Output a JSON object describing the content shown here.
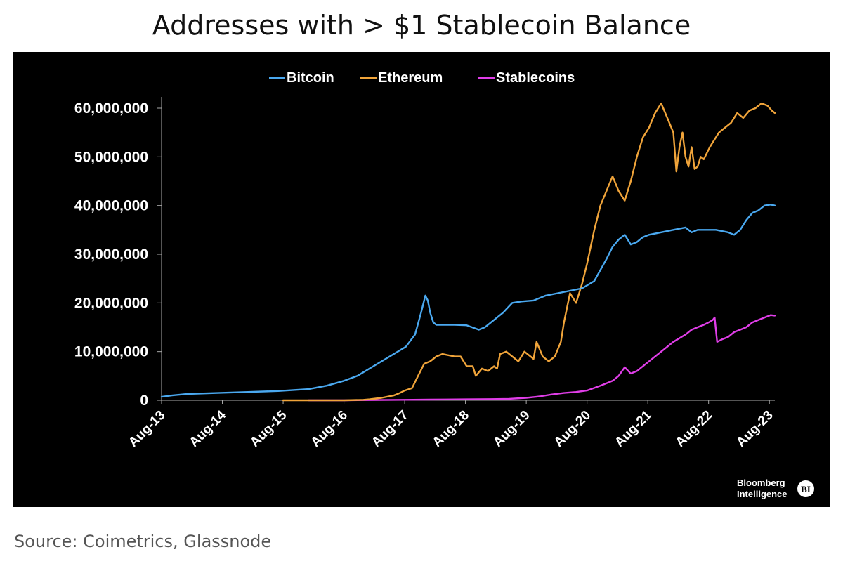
{
  "page": {
    "title": "Addresses with > $1 Stablecoin Balance",
    "source": "Source: Coimetrics, Glassnode"
  },
  "branding": {
    "line1": "Bloomberg",
    "line2": "Intelligence",
    "badge": "BI"
  },
  "colors": {
    "background": "#000000",
    "bitcoin": "#4aa8ef",
    "ethereum": "#f0a43a",
    "stablecoins": "#e03ee8",
    "axis": "#aaaaaa"
  },
  "chart_data": {
    "type": "line",
    "title": "Addresses with > $1 Stablecoin Balance",
    "xlabel": "",
    "ylabel": "",
    "xlim": [
      2013.58,
      2023.67
    ],
    "ylim": [
      0,
      60000000
    ],
    "yticks": [
      0,
      10000000,
      20000000,
      30000000,
      40000000,
      50000000,
      60000000
    ],
    "ytick_labels": [
      "0",
      "10,000,000",
      "20,000,000",
      "30,000,000",
      "40,000,000",
      "50,000,000",
      "60,000,000"
    ],
    "xticks": [
      2013.58,
      2014.58,
      2015.58,
      2016.58,
      2017.58,
      2018.58,
      2019.58,
      2020.58,
      2021.58,
      2022.58,
      2023.58
    ],
    "xtick_labels": [
      "Aug-13",
      "Aug-14",
      "Aug-15",
      "Aug-16",
      "Aug-17",
      "Aug-18",
      "Aug-19",
      "Aug-20",
      "Aug-21",
      "Aug-22",
      "Aug-23"
    ],
    "legend_position": "top-center",
    "grid": false,
    "series": [
      {
        "name": "Bitcoin",
        "color": "#4aa8ef",
        "x": [
          2013.58,
          2013.75,
          2014.0,
          2014.5,
          2015.0,
          2015.5,
          2016.0,
          2016.3,
          2016.58,
          2016.8,
          2017.0,
          2017.2,
          2017.4,
          2017.6,
          2017.75,
          2017.85,
          2017.92,
          2017.96,
          2018.0,
          2018.05,
          2018.1,
          2018.2,
          2018.4,
          2018.6,
          2018.8,
          2018.9,
          2019.0,
          2019.2,
          2019.35,
          2019.5,
          2019.7,
          2019.9,
          2020.1,
          2020.3,
          2020.5,
          2020.7,
          2020.9,
          2021.0,
          2021.1,
          2021.2,
          2021.3,
          2021.4,
          2021.5,
          2021.6,
          2021.8,
          2022.0,
          2022.2,
          2022.3,
          2022.4,
          2022.5,
          2022.7,
          2022.9,
          2023.0,
          2023.1,
          2023.2,
          2023.3,
          2023.4,
          2023.5,
          2023.6,
          2023.67
        ],
        "values": [
          700000,
          1000000,
          1300000,
          1500000,
          1700000,
          1900000,
          2300000,
          3000000,
          4000000,
          5000000,
          6500000,
          8000000,
          9500000,
          11000000,
          13500000,
          18000000,
          21500000,
          20500000,
          18000000,
          16000000,
          15500000,
          15500000,
          15500000,
          15400000,
          14500000,
          15000000,
          16000000,
          18000000,
          20000000,
          20300000,
          20500000,
          21500000,
          22000000,
          22500000,
          23000000,
          24500000,
          29000000,
          31500000,
          33000000,
          34000000,
          32000000,
          32500000,
          33500000,
          34000000,
          34500000,
          35000000,
          35500000,
          34500000,
          35000000,
          35000000,
          35000000,
          34500000,
          34000000,
          35000000,
          37000000,
          38500000,
          39000000,
          40000000,
          40200000,
          40000000
        ]
      },
      {
        "name": "Ethereum",
        "color": "#f0a43a",
        "x": [
          2015.58,
          2016.0,
          2016.58,
          2016.9,
          2017.0,
          2017.2,
          2017.4,
          2017.5,
          2017.58,
          2017.7,
          2017.8,
          2017.9,
          2018.0,
          2018.1,
          2018.2,
          2018.4,
          2018.5,
          2018.6,
          2018.7,
          2018.75,
          2018.85,
          2018.95,
          2019.05,
          2019.1,
          2019.15,
          2019.25,
          2019.35,
          2019.45,
          2019.55,
          2019.65,
          2019.7,
          2019.75,
          2019.85,
          2019.95,
          2020.05,
          2020.15,
          2020.2,
          2020.3,
          2020.4,
          2020.5,
          2020.58,
          2020.7,
          2020.8,
          2020.9,
          2021.0,
          2021.1,
          2021.2,
          2021.3,
          2021.4,
          2021.5,
          2021.6,
          2021.7,
          2021.8,
          2021.9,
          2022.0,
          2022.05,
          2022.1,
          2022.15,
          2022.2,
          2022.25,
          2022.3,
          2022.35,
          2022.4,
          2022.45,
          2022.5,
          2022.6,
          2022.65,
          2022.75,
          2022.85,
          2022.95,
          2023.05,
          2023.15,
          2023.25,
          2023.35,
          2023.45,
          2023.55,
          2023.62,
          2023.67
        ],
        "values": [
          0,
          0,
          0,
          100000,
          200000,
          500000,
          1000000,
          1500000,
          2000000,
          2500000,
          5000000,
          7500000,
          8000000,
          9000000,
          9500000,
          9000000,
          9000000,
          7000000,
          7000000,
          5000000,
          6500000,
          6000000,
          7000000,
          6500000,
          9500000,
          10000000,
          9000000,
          8000000,
          10000000,
          9000000,
          8500000,
          12000000,
          9000000,
          8000000,
          9000000,
          12000000,
          16000000,
          22000000,
          20000000,
          24000000,
          28000000,
          35000000,
          40000000,
          43000000,
          46000000,
          43000000,
          41000000,
          45000000,
          50000000,
          54000000,
          56000000,
          59000000,
          61000000,
          58000000,
          55000000,
          47000000,
          52000000,
          55000000,
          50000000,
          48000000,
          52000000,
          47500000,
          48000000,
          50000000,
          49500000,
          52000000,
          53000000,
          55000000,
          56000000,
          57000000,
          59000000,
          58000000,
          59500000,
          60000000,
          61000000,
          60500000,
          59500000,
          59000000
        ]
      },
      {
        "name": "Stablecoins",
        "color": "#e03ee8",
        "x": [
          2016.0,
          2016.58,
          2017.0,
          2017.58,
          2018.0,
          2018.58,
          2019.0,
          2019.3,
          2019.58,
          2019.8,
          2020.0,
          2020.2,
          2020.4,
          2020.58,
          2020.8,
          2021.0,
          2021.1,
          2021.2,
          2021.3,
          2021.4,
          2021.5,
          2021.6,
          2021.8,
          2022.0,
          2022.2,
          2022.3,
          2022.4,
          2022.5,
          2022.58,
          2022.65,
          2022.68,
          2022.72,
          2022.8,
          2022.9,
          2023.0,
          2023.1,
          2023.2,
          2023.3,
          2023.4,
          2023.5,
          2023.6,
          2023.67
        ],
        "values": [
          0,
          0,
          50000,
          100000,
          150000,
          200000,
          250000,
          300000,
          500000,
          800000,
          1200000,
          1500000,
          1700000,
          2000000,
          3000000,
          4000000,
          5000000,
          6800000,
          5500000,
          6000000,
          7000000,
          8000000,
          10000000,
          12000000,
          13500000,
          14500000,
          15000000,
          15500000,
          16000000,
          16500000,
          17000000,
          12000000,
          12500000,
          13000000,
          14000000,
          14500000,
          15000000,
          16000000,
          16500000,
          17000000,
          17500000,
          17400000
        ]
      }
    ]
  }
}
